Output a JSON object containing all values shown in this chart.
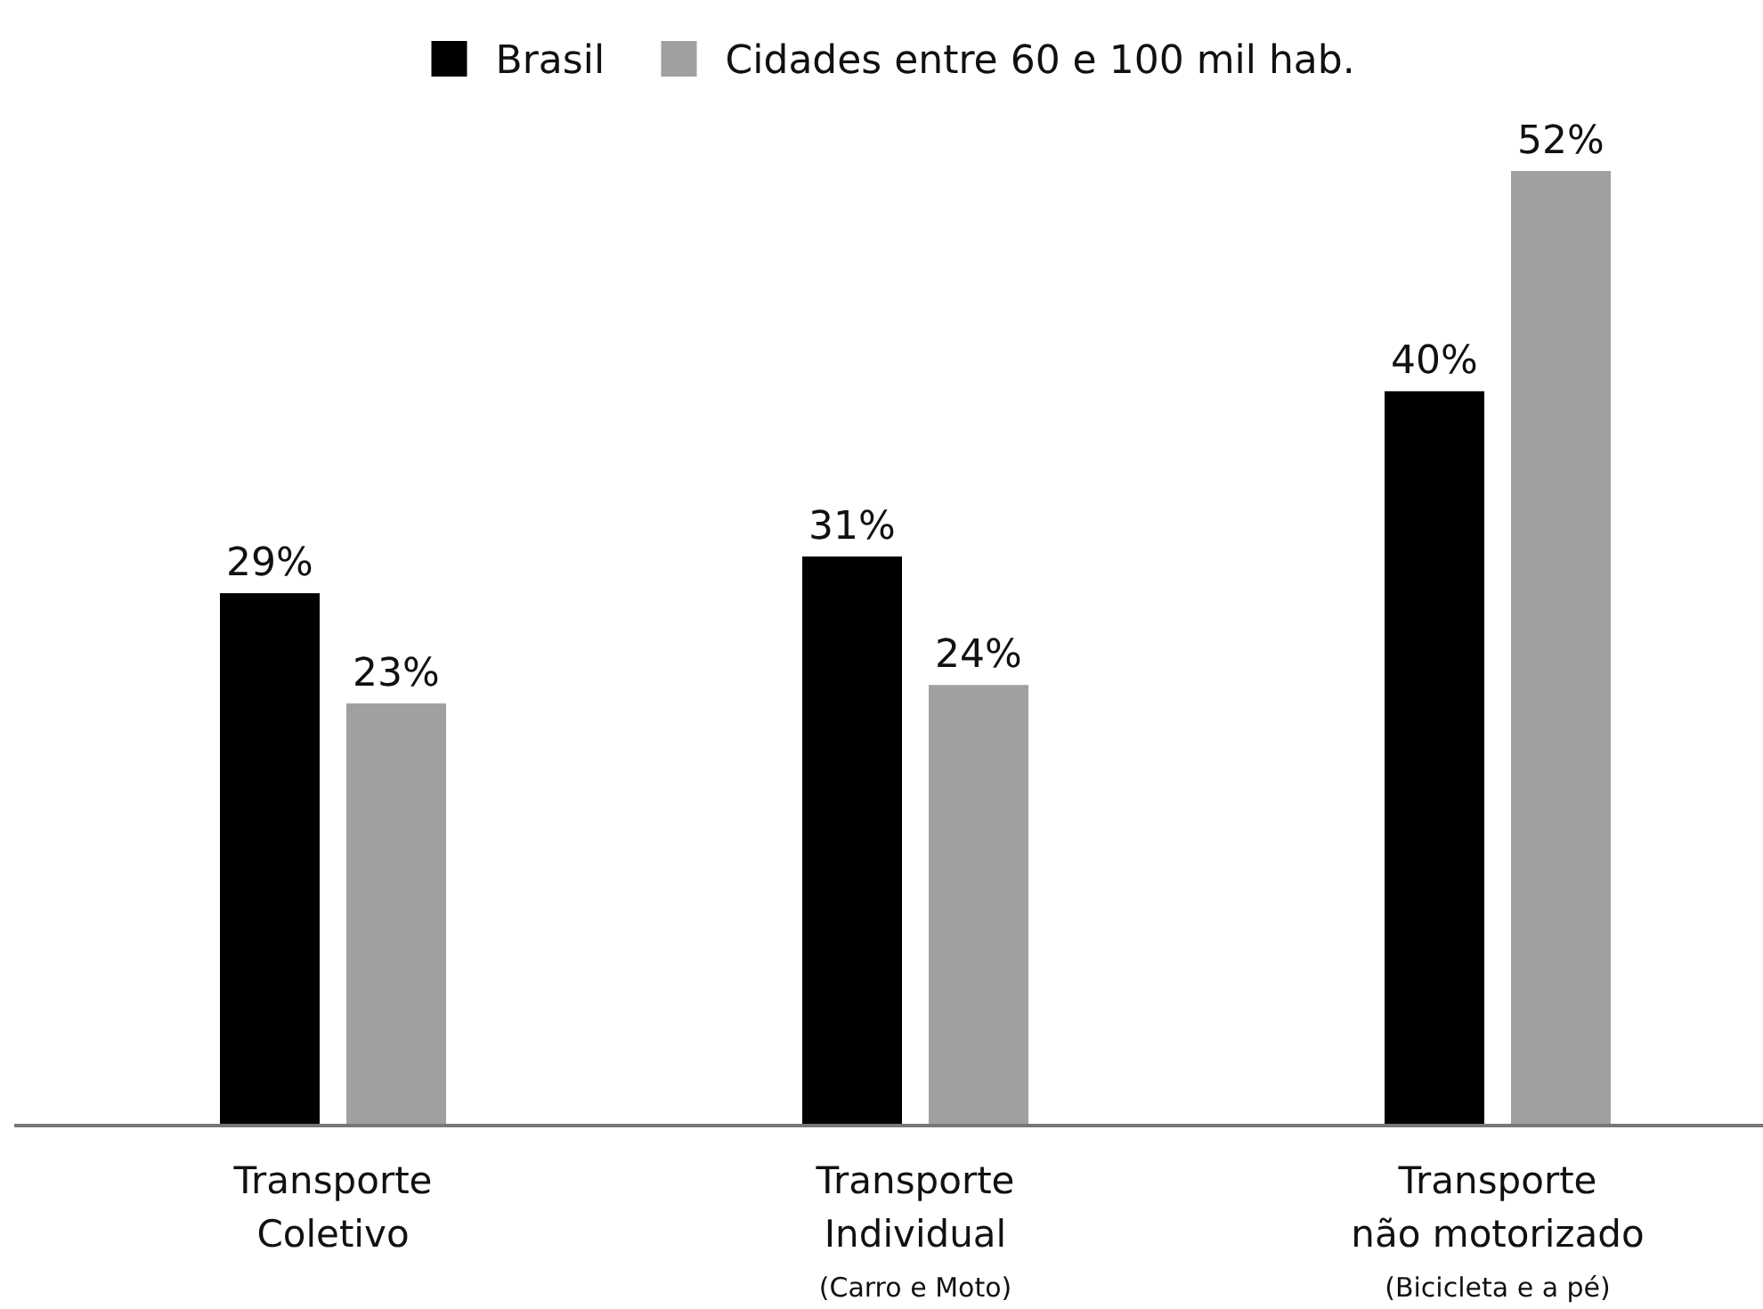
{
  "chart_data": {
    "type": "bar",
    "categories": [
      "Transporte\nColetivo",
      "Transporte\nIndividual\n(Carro e Moto)",
      "Transporte\nnão motorizado\n(Bicicleta e a pé)"
    ],
    "series": [
      {
        "name": "Brasil",
        "color": "#000000",
        "values": [
          29,
          31,
          40
        ],
        "value_labels": [
          "29%",
          "31%",
          "40%"
        ]
      },
      {
        "name": "Cidades entre 60 e 100 mil hab.",
        "color": "#a0a0a0",
        "values": [
          23,
          24,
          52
        ],
        "value_labels": [
          "23%",
          "24%",
          "52%"
        ]
      }
    ],
    "tick_labels": "x",
    "legend": "top"
  }
}
